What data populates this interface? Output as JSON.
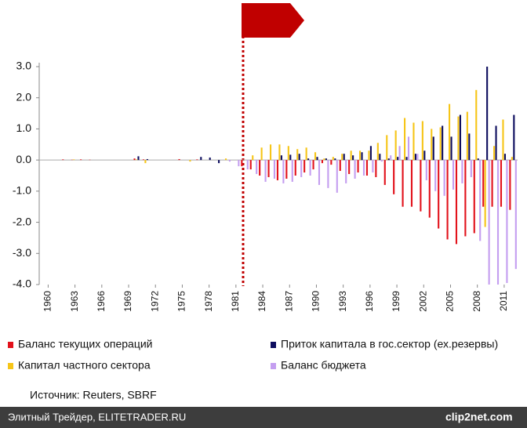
{
  "chart_data": {
    "type": "bar",
    "x": [
      1960,
      1961,
      1962,
      1963,
      1964,
      1965,
      1966,
      1967,
      1968,
      1969,
      1970,
      1971,
      1972,
      1973,
      1974,
      1975,
      1976,
      1977,
      1978,
      1979,
      1980,
      1981,
      1982,
      1983,
      1984,
      1985,
      1986,
      1987,
      1988,
      1989,
      1990,
      1991,
      1992,
      1993,
      1994,
      1995,
      1996,
      1997,
      1998,
      1999,
      2000,
      2001,
      2002,
      2003,
      2004,
      2005,
      2006,
      2007,
      2008,
      2009,
      2010,
      2011,
      2012
    ],
    "xlim": [
      1959,
      2012.5
    ],
    "xticks": [
      1960,
      1963,
      1966,
      1969,
      1972,
      1975,
      1978,
      1981,
      1984,
      1987,
      1990,
      1993,
      1996,
      1999,
      2002,
      2005,
      2008,
      2011
    ],
    "ylim": [
      -4,
      3
    ],
    "yticks": [
      {
        "value": 3,
        "label": "3.0"
      },
      {
        "value": 2,
        "label": "2.0"
      },
      {
        "value": 1,
        "label": "1.0"
      },
      {
        "value": 0,
        "label": "0.0"
      },
      {
        "value": -1,
        "label": "-1.0"
      },
      {
        "value": -2,
        "label": "-2.0"
      },
      {
        "value": -3,
        "label": "-3.0"
      },
      {
        "value": -4,
        "label": "-4.0"
      }
    ],
    "grid": false,
    "series": [
      {
        "name": "Баланс текущих операций",
        "color": "#e2121b",
        "values": [
          0,
          0,
          0.02,
          0.01,
          0.02,
          0.01,
          0,
          0,
          0,
          0,
          0.05,
          0.02,
          0,
          0,
          0,
          0.03,
          0,
          0.02,
          0,
          0,
          0,
          0,
          -0.2,
          -0.3,
          -0.5,
          -0.55,
          -0.65,
          -0.6,
          -0.5,
          -0.4,
          -0.3,
          -0.1,
          -0.15,
          -0.35,
          -0.45,
          -0.4,
          -0.5,
          -0.55,
          -0.8,
          -1.1,
          -1.5,
          -1.5,
          -1.65,
          -1.85,
          -2.2,
          -2.55,
          -2.7,
          -2.45,
          -2.35,
          -1.5,
          -1.5,
          -1.5,
          -1.6
        ]
      },
      {
        "name": "Капитал частного сектора",
        "color": "#f6c518",
        "values": [
          0,
          0,
          0,
          0.02,
          0,
          0,
          0,
          0,
          0,
          0,
          0.02,
          -0.1,
          0,
          0,
          0,
          0,
          -0.05,
          0,
          0,
          0,
          0.05,
          0,
          0,
          0.15,
          0.4,
          0.5,
          0.5,
          0.45,
          0.35,
          0.4,
          0.25,
          0.05,
          0.1,
          0.2,
          0.3,
          0.3,
          0.3,
          0.55,
          0.8,
          0.95,
          1.35,
          1.2,
          1.25,
          1.0,
          1.05,
          1.8,
          1.4,
          1.55,
          2.25,
          -2.15,
          0.45,
          1.3,
          0.1
        ]
      },
      {
        "name": "Приток капитала в гос.сектор (ех.резервы)",
        "color": "#0d0d5e",
        "values": [
          0,
          0,
          0,
          0,
          0,
          0,
          0,
          0,
          0,
          0,
          0.12,
          0.03,
          0,
          0,
          0,
          0,
          0,
          0.1,
          0.08,
          -0.1,
          0,
          0,
          0,
          0,
          0,
          0,
          0.15,
          0.17,
          0.2,
          0.05,
          0.1,
          0.05,
          0.05,
          0.2,
          0.15,
          0.25,
          0.45,
          0.2,
          0.05,
          0.1,
          0.1,
          0.2,
          0.3,
          0.75,
          1.1,
          0.75,
          1.45,
          0.85,
          0.05,
          3.0,
          1.1,
          0.2,
          1.45
        ]
      },
      {
        "name": "Баланс бюджета",
        "color": "#c49ef0",
        "values": [
          0,
          0,
          0,
          0,
          0,
          0,
          0,
          0,
          0,
          0,
          0,
          0,
          0,
          0,
          0,
          0,
          0,
          0,
          0,
          0,
          -0.05,
          -0.2,
          -0.3,
          -0.45,
          -0.7,
          -0.6,
          -0.75,
          -0.7,
          -0.55,
          -0.5,
          -0.8,
          -0.9,
          -1.05,
          -0.75,
          -0.6,
          -0.5,
          -0.4,
          -0.05,
          0.15,
          0.45,
          0.75,
          0.2,
          -0.65,
          -1.0,
          -1.15,
          -0.95,
          -0.75,
          -0.55,
          -2.6,
          -4.0,
          -4.0,
          -3.95,
          -3.5
        ]
      }
    ],
    "source": "Источник: Reuters, SBRF",
    "footer": {
      "left": "Элитный Трейдер, ELITETRADER.RU",
      "right": "clip2net.com"
    }
  }
}
